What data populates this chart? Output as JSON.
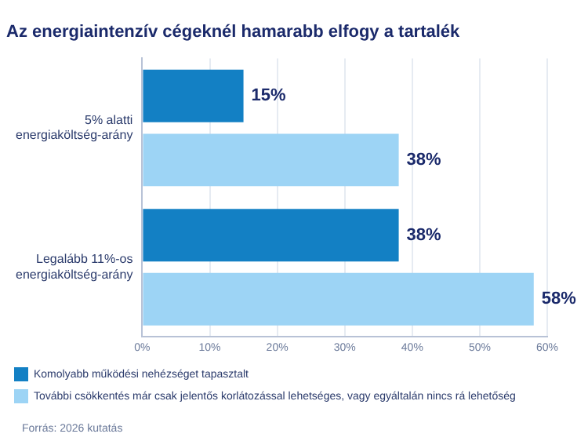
{
  "chart_data": {
    "type": "bar",
    "orientation": "horizontal",
    "title": "Az energiaintenzív cégeknél hamarabb elfogy a tartalék",
    "categories": [
      "5% alatti energiaköltség-arány",
      "Legalább 11%-os energiaköltség-arány"
    ],
    "series": [
      {
        "name": "Komolyabb működési nehézséget tapasztalt",
        "color": "#1380c4",
        "values": [
          15,
          38
        ],
        "value_labels": [
          "15%",
          "38%"
        ]
      },
      {
        "name": "További csökkentés már csak jelentős korlátozással lehetséges, vagy egyáltalán nincs rá lehetőség",
        "color": "#9dd4f5",
        "values": [
          38,
          58
        ],
        "value_labels": [
          "38%",
          "58%"
        ]
      }
    ],
    "xlim": [
      0,
      60
    ],
    "xticks": [
      {
        "value": 0,
        "label": "0%"
      },
      {
        "value": 10,
        "label": "10%"
      },
      {
        "value": 20,
        "label": "20%"
      },
      {
        "value": 30,
        "label": "30%"
      },
      {
        "value": 40,
        "label": "40%"
      },
      {
        "value": 50,
        "label": "50%"
      },
      {
        "value": 60,
        "label": "60%"
      }
    ],
    "grid": "x",
    "legend": "bottom",
    "annotations": [
      "Forrás: 2026 kutatás"
    ]
  }
}
